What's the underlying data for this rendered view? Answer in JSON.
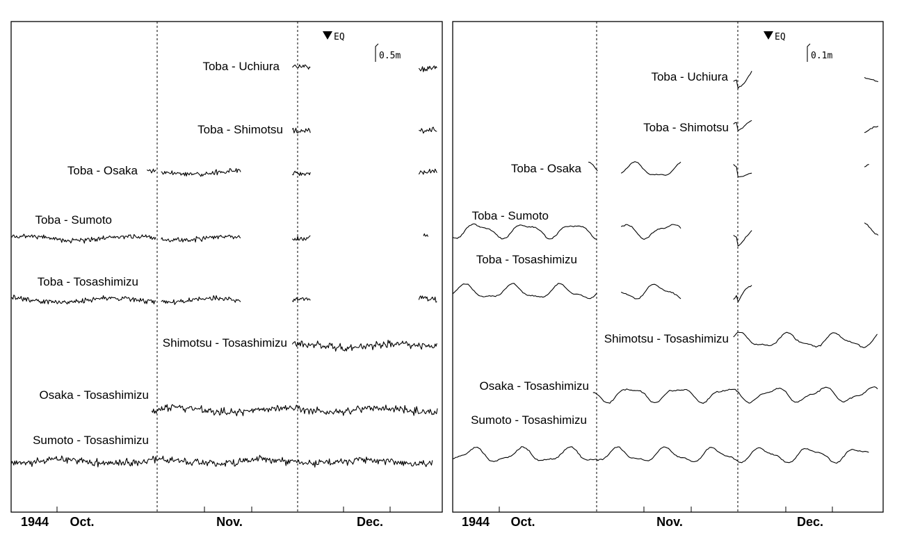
{
  "chart_data": [
    {
      "type": "line",
      "title": "",
      "xlabel": "",
      "ylabel": "",
      "year_label": "1944",
      "months": [
        "Oct.",
        "Nov.",
        "Dec."
      ],
      "event_marker": "EQ",
      "scale_bar": "0.5m",
      "series": [
        {
          "name": "Toba - Uchiura",
          "segments": [
            [
              "Nov. 30",
              "Dec. 3"
            ],
            [
              "Dec. 27",
              "Dec. 30"
            ]
          ]
        },
        {
          "name": "Toba - Shimotsu",
          "segments": [
            [
              "Nov. 30",
              "Dec. 3"
            ],
            [
              "Dec. 27",
              "Dec. 30"
            ]
          ]
        },
        {
          "name": "Toba - Osaka",
          "segments": [
            [
              "Oct. 30",
              "Oct. 31"
            ],
            [
              "Nov. 2",
              "Nov. 18"
            ],
            [
              "Nov. 30",
              "Dec. 3"
            ],
            [
              "Dec. 27",
              "Dec. 30"
            ]
          ]
        },
        {
          "name": "Toba - Sumoto",
          "segments": [
            [
              "Oct. 1",
              "Oct. 31"
            ],
            [
              "Nov. 2",
              "Nov. 18"
            ],
            [
              "Nov. 30",
              "Dec. 3"
            ],
            [
              "Dec. 28",
              "Dec. 28"
            ]
          ]
        },
        {
          "name": "Toba - Tosashimizu",
          "segments": [
            [
              "Oct. 1",
              "Oct. 31"
            ],
            [
              "Nov. 2",
              "Nov. 18"
            ],
            [
              "Nov. 30",
              "Dec. 3"
            ],
            [
              "Dec. 27",
              "Dec. 30"
            ]
          ]
        },
        {
          "name": "Shimotsu - Tosashimizu",
          "segments": [
            [
              "Nov. 30",
              "Dec. 30"
            ]
          ]
        },
        {
          "name": "Osaka - Tosashimizu",
          "segments": [
            [
              "Oct. 31",
              "Dec. 30"
            ]
          ]
        },
        {
          "name": "Sumoto - Tosashimizu",
          "segments": [
            [
              "Oct. 1",
              "Dec. 29"
            ]
          ]
        }
      ]
    },
    {
      "type": "line",
      "title": "",
      "xlabel": "",
      "ylabel": "",
      "year_label": "1944",
      "months": [
        "Oct.",
        "Nov.",
        "Dec."
      ],
      "event_marker": "EQ",
      "scale_bar": "0.1m",
      "series": [
        {
          "name": "Toba - Uchiura",
          "segments": [
            [
              "Nov. 30",
              "Dec. 3"
            ],
            [
              "Dec. 28",
              "Dec. 30"
            ]
          ]
        },
        {
          "name": "Toba - Shimotsu",
          "segments": [
            [
              "Nov. 30",
              "Dec. 3"
            ],
            [
              "Dec. 28",
              "Dec. 30"
            ]
          ]
        },
        {
          "name": "Toba - Osaka",
          "segments": [
            [
              "Oct. 30",
              "Oct. 31"
            ],
            [
              "Nov. 6",
              "Nov. 18"
            ],
            [
              "Nov. 30",
              "Dec. 3"
            ],
            [
              "Dec. 28",
              "Dec. 28"
            ]
          ]
        },
        {
          "name": "Toba - Sumoto",
          "segments": [
            [
              "Oct. 1",
              "Oct. 31"
            ],
            [
              "Nov. 6",
              "Nov. 18"
            ],
            [
              "Nov. 30",
              "Dec. 3"
            ],
            [
              "Dec. 28",
              "Dec. 30"
            ]
          ]
        },
        {
          "name": "Toba - Tosashimizu",
          "segments": [
            [
              "Oct. 1",
              "Oct. 31"
            ],
            [
              "Nov. 6",
              "Nov. 18"
            ],
            [
              "Nov. 30",
              "Dec. 3"
            ]
          ]
        },
        {
          "name": "Shimotsu - Tosashimizu",
          "segments": [
            [
              "Nov. 30",
              "Dec. 30"
            ]
          ]
        },
        {
          "name": "Osaka - Tosashimizu",
          "segments": [
            [
              "Oct. 31",
              "Dec. 30"
            ]
          ]
        },
        {
          "name": "Sumoto - Tosashimizu",
          "segments": [
            [
              "Oct. 1",
              "Dec. 28"
            ]
          ]
        }
      ]
    }
  ]
}
